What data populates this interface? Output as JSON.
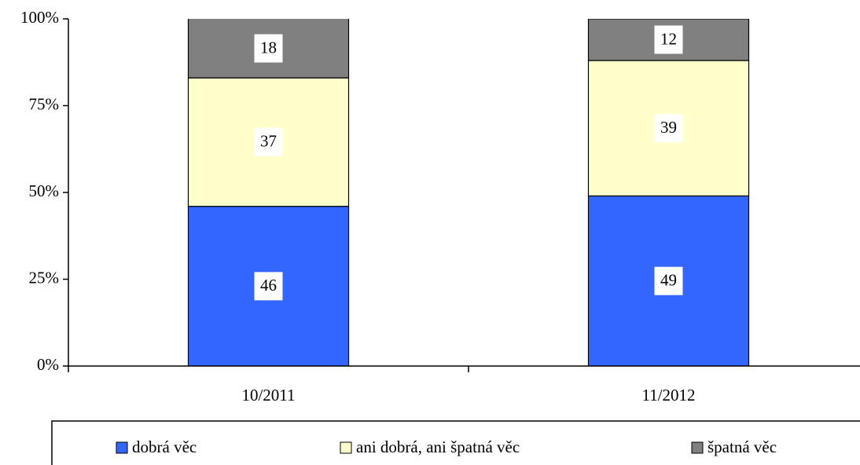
{
  "chart_data": {
    "type": "stacked_bar",
    "categories": [
      "10/2011",
      "11/2012"
    ],
    "series": [
      {
        "name": "dobrá věc",
        "color": "#3366ff",
        "values": [
          46,
          49
        ]
      },
      {
        "name": "ani dobrá, ani špatná věc",
        "color": "#ffffcc",
        "values": [
          37,
          39
        ]
      },
      {
        "name": "špatná věc",
        "color": "#808080",
        "values": [
          18,
          12
        ]
      }
    ],
    "ylim": [
      0,
      100
    ],
    "yticks": [
      {
        "value": 0,
        "label": "0%"
      },
      {
        "value": 25,
        "label": "25%"
      },
      {
        "value": 50,
        "label": "50%"
      },
      {
        "value": 75,
        "label": "75%"
      },
      {
        "value": 100,
        "label": "100%"
      }
    ],
    "legend": "bottom"
  }
}
